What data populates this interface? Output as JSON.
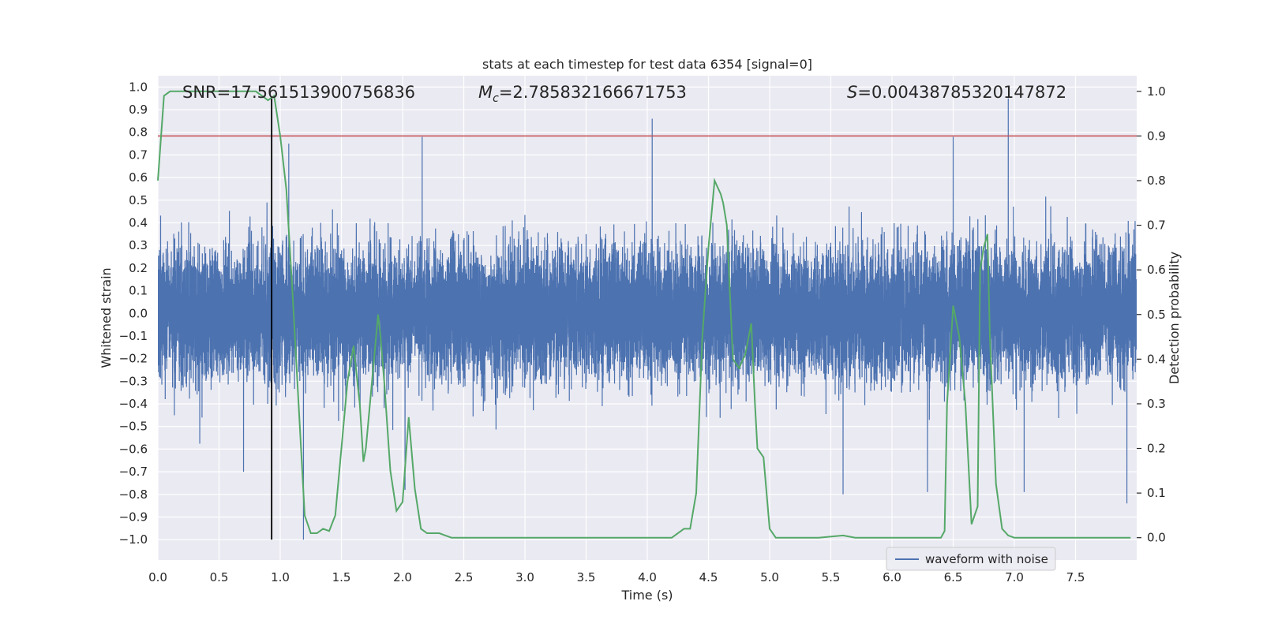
{
  "chart_data": {
    "type": "line",
    "title": "stats at each timestep for test data 6354 [signal=0]",
    "xlabel": "Time (s)",
    "ylabel_left": "Whitened strain",
    "ylabel_right": "Detection probability",
    "xlim": [
      0,
      8
    ],
    "ylim_left": [
      -1.09,
      1.05
    ],
    "ylim_right": [
      -0.05,
      1.035
    ],
    "x_ticks": [
      "0.0",
      "0.5",
      "1.0",
      "1.5",
      "2.0",
      "2.5",
      "3.0",
      "3.5",
      "4.0",
      "4.5",
      "5.0",
      "5.5",
      "6.0",
      "6.5",
      "7.0",
      "7.5"
    ],
    "y_ticks_left": [
      "1.0",
      "0.9",
      "0.8",
      "0.7",
      "0.6",
      "0.5",
      "0.4",
      "0.3",
      "0.2",
      "0.1",
      "0.0",
      "-0.1",
      "-0.2",
      "-0.3",
      "-0.4",
      "-0.5",
      "-0.6",
      "-0.7",
      "-0.8",
      "-0.9",
      "-1.0"
    ],
    "y_ticks_right": [
      "1.0",
      "0.9",
      "0.8",
      "0.7",
      "0.6",
      "0.5",
      "0.4",
      "0.3",
      "0.2",
      "0.1",
      "0.0"
    ],
    "grid": true,
    "annotations": {
      "snr": "SNR=17.561513900756836",
      "mc_symbol": "M",
      "mc_sub": "c",
      "mc_value": "=2.785832166671753",
      "s_symbol": "S",
      "s_value": "=0.00438785320147872"
    },
    "vertical_marker_x": 0.93,
    "threshold_probability": 0.9,
    "legend": {
      "label": "waveform with noise",
      "position": "lower-right"
    },
    "colors": {
      "waveform": "#4c72b0",
      "probability": "#55a868",
      "threshold": "#c44e52",
      "marker": "#000000",
      "background": "#eaeaf2",
      "grid": "#ffffff"
    },
    "series": [
      {
        "name": "waveform with noise",
        "axis": "left",
        "sample_rate": 2048,
        "noise_sigma": 0.14,
        "spikes": [
          {
            "x": 4.04,
            "y": 0.86
          },
          {
            "x": 6.95,
            "y": 0.95
          },
          {
            "x": 2.16,
            "y": 0.78
          },
          {
            "x": 6.5,
            "y": 0.78
          },
          {
            "x": 1.07,
            "y": 0.75
          },
          {
            "x": 1.19,
            "y": -1.0
          },
          {
            "x": 5.6,
            "y": -0.8
          },
          {
            "x": 7.92,
            "y": -0.84
          },
          {
            "x": 2.02,
            "y": -0.78
          },
          {
            "x": 6.29,
            "y": -0.79
          },
          {
            "x": 7.08,
            "y": -0.79
          },
          {
            "x": 0.7,
            "y": -0.7
          }
        ]
      },
      {
        "name": "",
        "axis": "right",
        "x": [
          0.0,
          0.05,
          0.1,
          0.15,
          0.2,
          0.3,
          0.4,
          0.5,
          0.6,
          0.7,
          0.8,
          0.85,
          0.9,
          0.95,
          1.0,
          1.05,
          1.1,
          1.15,
          1.2,
          1.25,
          1.3,
          1.35,
          1.4,
          1.45,
          1.5,
          1.55,
          1.6,
          1.63,
          1.65,
          1.68,
          1.7,
          1.75,
          1.8,
          1.82,
          1.85,
          1.9,
          1.95,
          2.0,
          2.05,
          2.1,
          2.15,
          2.2,
          2.25,
          2.3,
          2.35,
          2.4,
          2.5,
          2.6,
          2.7,
          2.8,
          3.0,
          3.2,
          3.4,
          3.5,
          3.6,
          3.8,
          4.0,
          4.05,
          4.1,
          4.15,
          4.2,
          4.25,
          4.3,
          4.35,
          4.4,
          4.45,
          4.5,
          4.55,
          4.6,
          4.62,
          4.65,
          4.7,
          4.75,
          4.8,
          4.85,
          4.88,
          4.9,
          4.95,
          5.0,
          5.05,
          5.1,
          5.2,
          5.4,
          5.6,
          5.7,
          5.8,
          6.0,
          6.2,
          6.3,
          6.35,
          6.4,
          6.43,
          6.45,
          6.5,
          6.55,
          6.6,
          6.65,
          6.7,
          6.72,
          6.75,
          6.78,
          6.8,
          6.85,
          6.9,
          6.95,
          7.0,
          7.2,
          7.4,
          7.6,
          7.95
        ],
        "values": [
          0.8,
          0.99,
          1.0,
          1.0,
          1.0,
          1.0,
          1.0,
          1.0,
          1.0,
          1.0,
          1.0,
          0.99,
          0.98,
          0.99,
          0.9,
          0.78,
          0.55,
          0.3,
          0.05,
          0.01,
          0.01,
          0.02,
          0.015,
          0.05,
          0.2,
          0.35,
          0.43,
          0.35,
          0.3,
          0.17,
          0.2,
          0.35,
          0.5,
          0.45,
          0.35,
          0.15,
          0.06,
          0.08,
          0.27,
          0.11,
          0.02,
          0.01,
          0.01,
          0.01,
          0.005,
          0.0,
          0.0,
          0.0,
          0.0,
          0.0,
          0.0,
          0.0,
          0.0,
          0.0,
          0.0,
          0.0,
          0.0,
          0.0,
          0.0,
          0.0,
          0.0,
          0.01,
          0.02,
          0.02,
          0.1,
          0.45,
          0.65,
          0.8,
          0.77,
          0.75,
          0.7,
          0.4,
          0.38,
          0.41,
          0.48,
          0.3,
          0.2,
          0.18,
          0.02,
          0.0,
          0.0,
          0.0,
          0.0,
          0.005,
          0.0,
          0.0,
          0.0,
          0.0,
          0.0,
          0.0,
          0.0,
          0.015,
          0.3,
          0.52,
          0.45,
          0.3,
          0.03,
          0.07,
          0.6,
          0.65,
          0.68,
          0.45,
          0.12,
          0.02,
          0.005,
          0.0,
          0.0,
          0.0,
          0.0,
          0.0
        ]
      }
    ]
  }
}
